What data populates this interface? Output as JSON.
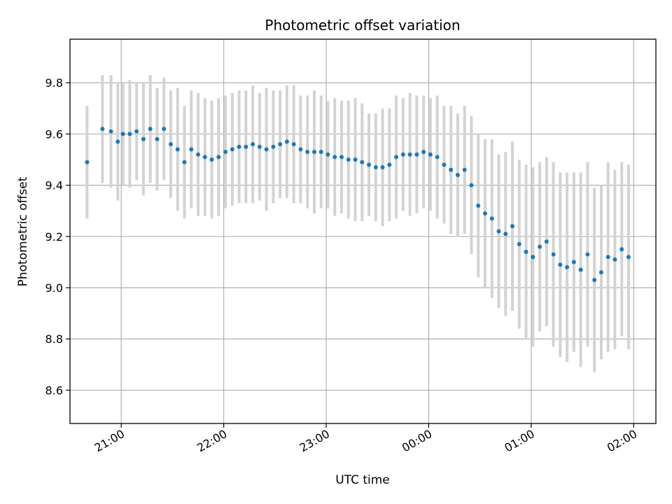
{
  "chart_data": {
    "type": "scatter",
    "title": "Photometric offset variation",
    "xlabel": "UTC time",
    "ylabel": "Photometric offset",
    "xlim": [
      "20:30",
      "02:13"
    ],
    "ylim": [
      8.47,
      9.97
    ],
    "x_ticks": [
      "21:00",
      "22:00",
      "23:00",
      "00:00",
      "01:00",
      "02:00"
    ],
    "y_ticks": [
      "8.6",
      "8.8",
      "9.0",
      "9.2",
      "9.4",
      "9.6",
      "9.8"
    ],
    "grid": true,
    "colors": {
      "points": "#1f77b4",
      "errorbars": "#d3d3d3"
    },
    "series": [
      {
        "x": [
          "20:40",
          "20:49",
          "20:54",
          "20:58",
          "21:01",
          "21:05",
          "21:09",
          "21:13",
          "21:17",
          "21:21",
          "21:25",
          "21:29",
          "21:33",
          "21:37",
          "21:41",
          "21:45",
          "21:49",
          "21:53",
          "21:57",
          "22:01",
          "22:05",
          "22:09",
          "22:13",
          "22:17",
          "22:21",
          "22:25",
          "22:29",
          "22:33",
          "22:37",
          "22:41",
          "22:45",
          "22:49",
          "22:53",
          "22:57",
          "23:01",
          "23:05",
          "23:09",
          "23:13",
          "23:17",
          "23:21",
          "23:25",
          "23:29",
          "23:33",
          "23:37",
          "23:41",
          "23:45",
          "23:49",
          "23:53",
          "23:57",
          "00:01",
          "00:05",
          "00:09",
          "00:13",
          "00:17",
          "00:21",
          "00:25",
          "00:29",
          "00:33",
          "00:37",
          "00:41",
          "00:45",
          "00:49",
          "00:53",
          "00:57",
          "01:01",
          "01:05",
          "01:09",
          "01:13",
          "01:17",
          "01:21",
          "01:25",
          "01:29",
          "01:33",
          "01:37",
          "01:41",
          "01:45",
          "01:49",
          "01:53",
          "01:57"
        ],
        "y": [
          9.49,
          9.62,
          9.61,
          9.57,
          9.6,
          9.6,
          9.61,
          9.58,
          9.62,
          9.58,
          9.62,
          9.56,
          9.54,
          9.49,
          9.54,
          9.52,
          9.51,
          9.5,
          9.51,
          9.53,
          9.54,
          9.55,
          9.55,
          9.56,
          9.55,
          9.54,
          9.55,
          9.56,
          9.57,
          9.56,
          9.54,
          9.53,
          9.53,
          9.53,
          9.52,
          9.51,
          9.51,
          9.5,
          9.5,
          9.49,
          9.48,
          9.47,
          9.47,
          9.48,
          9.51,
          9.52,
          9.52,
          9.52,
          9.53,
          9.52,
          9.51,
          9.48,
          9.46,
          9.44,
          9.46,
          9.4,
          9.32,
          9.29,
          9.27,
          9.22,
          9.21,
          9.24,
          9.17,
          9.14,
          9.12,
          9.16,
          9.18,
          9.13,
          9.09,
          9.08,
          9.1,
          9.07,
          9.13,
          9.03,
          9.06,
          9.12,
          9.11,
          9.15,
          9.12
        ],
        "yerr": [
          0.22,
          0.21,
          0.22,
          0.23,
          0.2,
          0.21,
          0.19,
          0.22,
          0.21,
          0.2,
          0.2,
          0.21,
          0.24,
          0.22,
          0.23,
          0.24,
          0.23,
          0.23,
          0.23,
          0.22,
          0.22,
          0.22,
          0.22,
          0.23,
          0.21,
          0.24,
          0.22,
          0.21,
          0.22,
          0.23,
          0.21,
          0.22,
          0.24,
          0.22,
          0.21,
          0.23,
          0.22,
          0.23,
          0.24,
          0.23,
          0.2,
          0.21,
          0.23,
          0.22,
          0.24,
          0.22,
          0.24,
          0.23,
          0.22,
          0.22,
          0.24,
          0.23,
          0.25,
          0.24,
          0.25,
          0.27,
          0.28,
          0.29,
          0.31,
          0.3,
          0.32,
          0.33,
          0.33,
          0.34,
          0.35,
          0.33,
          0.33,
          0.36,
          0.36,
          0.37,
          0.35,
          0.38,
          0.36,
          0.36,
          0.34,
          0.37,
          0.35,
          0.34,
          0.36
        ]
      }
    ]
  }
}
